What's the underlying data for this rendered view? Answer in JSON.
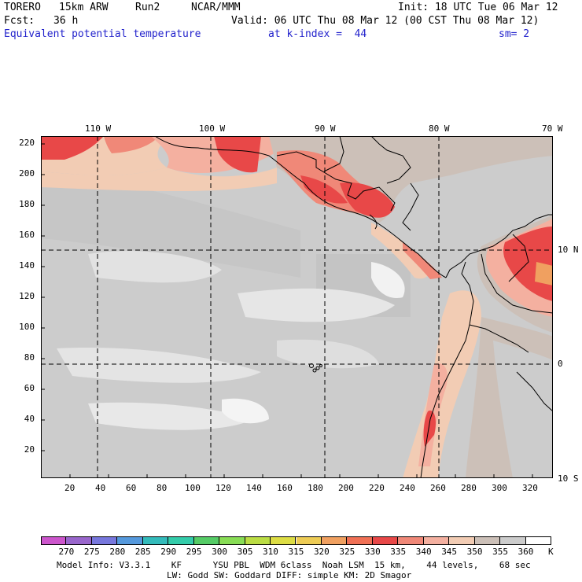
{
  "header": {
    "model_name": "TORERO",
    "resolution": "15km ARW",
    "run": "Run2",
    "org": "NCAR/MMM",
    "init": "Init: 18 UTC Tue 06 Mar 12",
    "fcst_label": "Fcst:",
    "fcst_value": "36 h",
    "valid": "Valid: 06 UTC Thu 08 Mar 12 (00 CST Thu 08 Mar 12)",
    "field": "Equivalent potential temperature",
    "level": "at k-index =  44",
    "smoothing": "sm= 2"
  },
  "top_axis": [
    "110 W",
    "100 W",
    "90 W",
    "80 W",
    "70 W"
  ],
  "left_axis": [
    "220",
    "200",
    "180",
    "160",
    "140",
    "120",
    "100",
    "80",
    "60",
    "40",
    "20"
  ],
  "bottom_axis": [
    "20",
    "40",
    "60",
    "80",
    "100",
    "120",
    "140",
    "160",
    "180",
    "200",
    "220",
    "240",
    "260",
    "280",
    "300",
    "320"
  ],
  "right_axis": [
    "10 N",
    "0",
    "10 S"
  ],
  "colorbar": {
    "labels": [
      "270",
      "275",
      "280",
      "285",
      "290",
      "295",
      "300",
      "305",
      "310",
      "315",
      "320",
      "325",
      "330",
      "335",
      "340",
      "345",
      "350",
      "355",
      "360"
    ],
    "unit": "K",
    "colors": [
      "#cc55cc",
      "#9966cc",
      "#7777dd",
      "#5599dd",
      "#33bbbb",
      "#33ccaa",
      "#55cc66",
      "#88dd55",
      "#bbdd44",
      "#dddd44",
      "#eecc55",
      "#f0a060",
      "#f07055",
      "#e84848",
      "#f08878",
      "#f4b0a0",
      "#f2ccb4",
      "#ccc0b8",
      "#cccccc",
      "#ffffff"
    ]
  },
  "footer": {
    "line1": "Model Info: V3.3.1    KF      YSU PBL  WDM 6class  Noah LSM  15 km,    44 levels,    68 sec",
    "line2": "LW: Godd SW: Goddard DIFF: simple KM: 2D Smagor"
  }
}
